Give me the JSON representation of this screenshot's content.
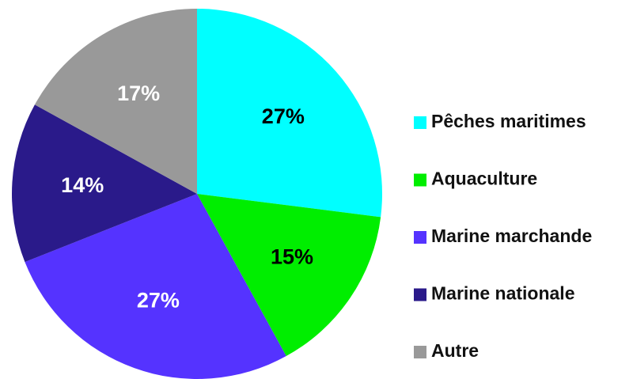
{
  "chart_data": {
    "type": "pie",
    "categories": [
      "Pêches maritimes",
      "Aquaculture",
      "Marine marchande",
      "Marine nationale",
      "Autre"
    ],
    "values": [
      27,
      15,
      27,
      14,
      17
    ],
    "value_labels": [
      "27%",
      "15%",
      "27%",
      "14%",
      "17%"
    ],
    "colors": [
      "#00ffff",
      "#00ee00",
      "#5533ff",
      "#2a1a8a",
      "#999999"
    ],
    "label_colors": [
      "#000000",
      "#000000",
      "#ffffff",
      "#ffffff",
      "#ffffff"
    ]
  }
}
